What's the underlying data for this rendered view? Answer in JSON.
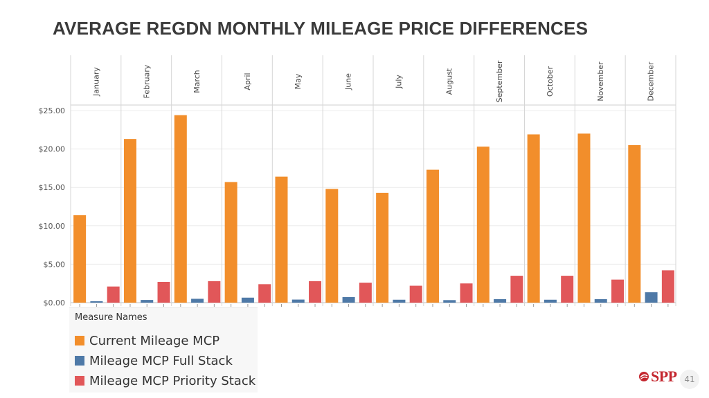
{
  "title": "AVERAGE REGDN MONTHLY MILEAGE PRICE DIFFERENCES",
  "chart_data": {
    "type": "bar",
    "categories": [
      "January",
      "February",
      "March",
      "April",
      "May",
      "June",
      "July",
      "August",
      "September",
      "October",
      "November",
      "December"
    ],
    "series": [
      {
        "name": "Current Mileage MCP",
        "color": "#f28e2b",
        "values": [
          11.4,
          21.3,
          24.4,
          15.7,
          16.4,
          14.8,
          14.3,
          17.3,
          20.3,
          21.9,
          22.0,
          20.5
        ]
      },
      {
        "name": "Mileage MCP Full Stack",
        "color": "#4e79a7",
        "values": [
          0.18,
          0.35,
          0.5,
          0.65,
          0.4,
          0.72,
          0.38,
          0.33,
          0.45,
          0.38,
          0.45,
          1.35
        ]
      },
      {
        "name": "Mileage MCP Priority Stack",
        "color": "#e15759",
        "values": [
          2.1,
          2.7,
          2.8,
          2.4,
          2.8,
          2.6,
          2.2,
          2.5,
          3.5,
          3.5,
          3.0,
          4.2
        ]
      }
    ],
    "yticks": [
      "$25.00",
      "$20.00",
      "$15.00",
      "$10.00",
      "$5.00",
      "$0.00"
    ],
    "ytick_values": [
      25,
      20,
      15,
      10,
      5,
      0
    ],
    "ylim": [
      0,
      25
    ],
    "xlabel": "",
    "ylabel": "",
    "legend_position": "bottom-left"
  },
  "legend": {
    "title": "Measure Names",
    "items": [
      {
        "label": "Current Mileage MCP",
        "color": "#f28e2b"
      },
      {
        "label": "Mileage MCP Full Stack",
        "color": "#4e79a7"
      },
      {
        "label": "Mileage MCP Priority Stack",
        "color": "#e15759"
      }
    ]
  },
  "logo": {
    "text": "SPP",
    "icon": "spp-logo-icon"
  },
  "page_number": "41"
}
